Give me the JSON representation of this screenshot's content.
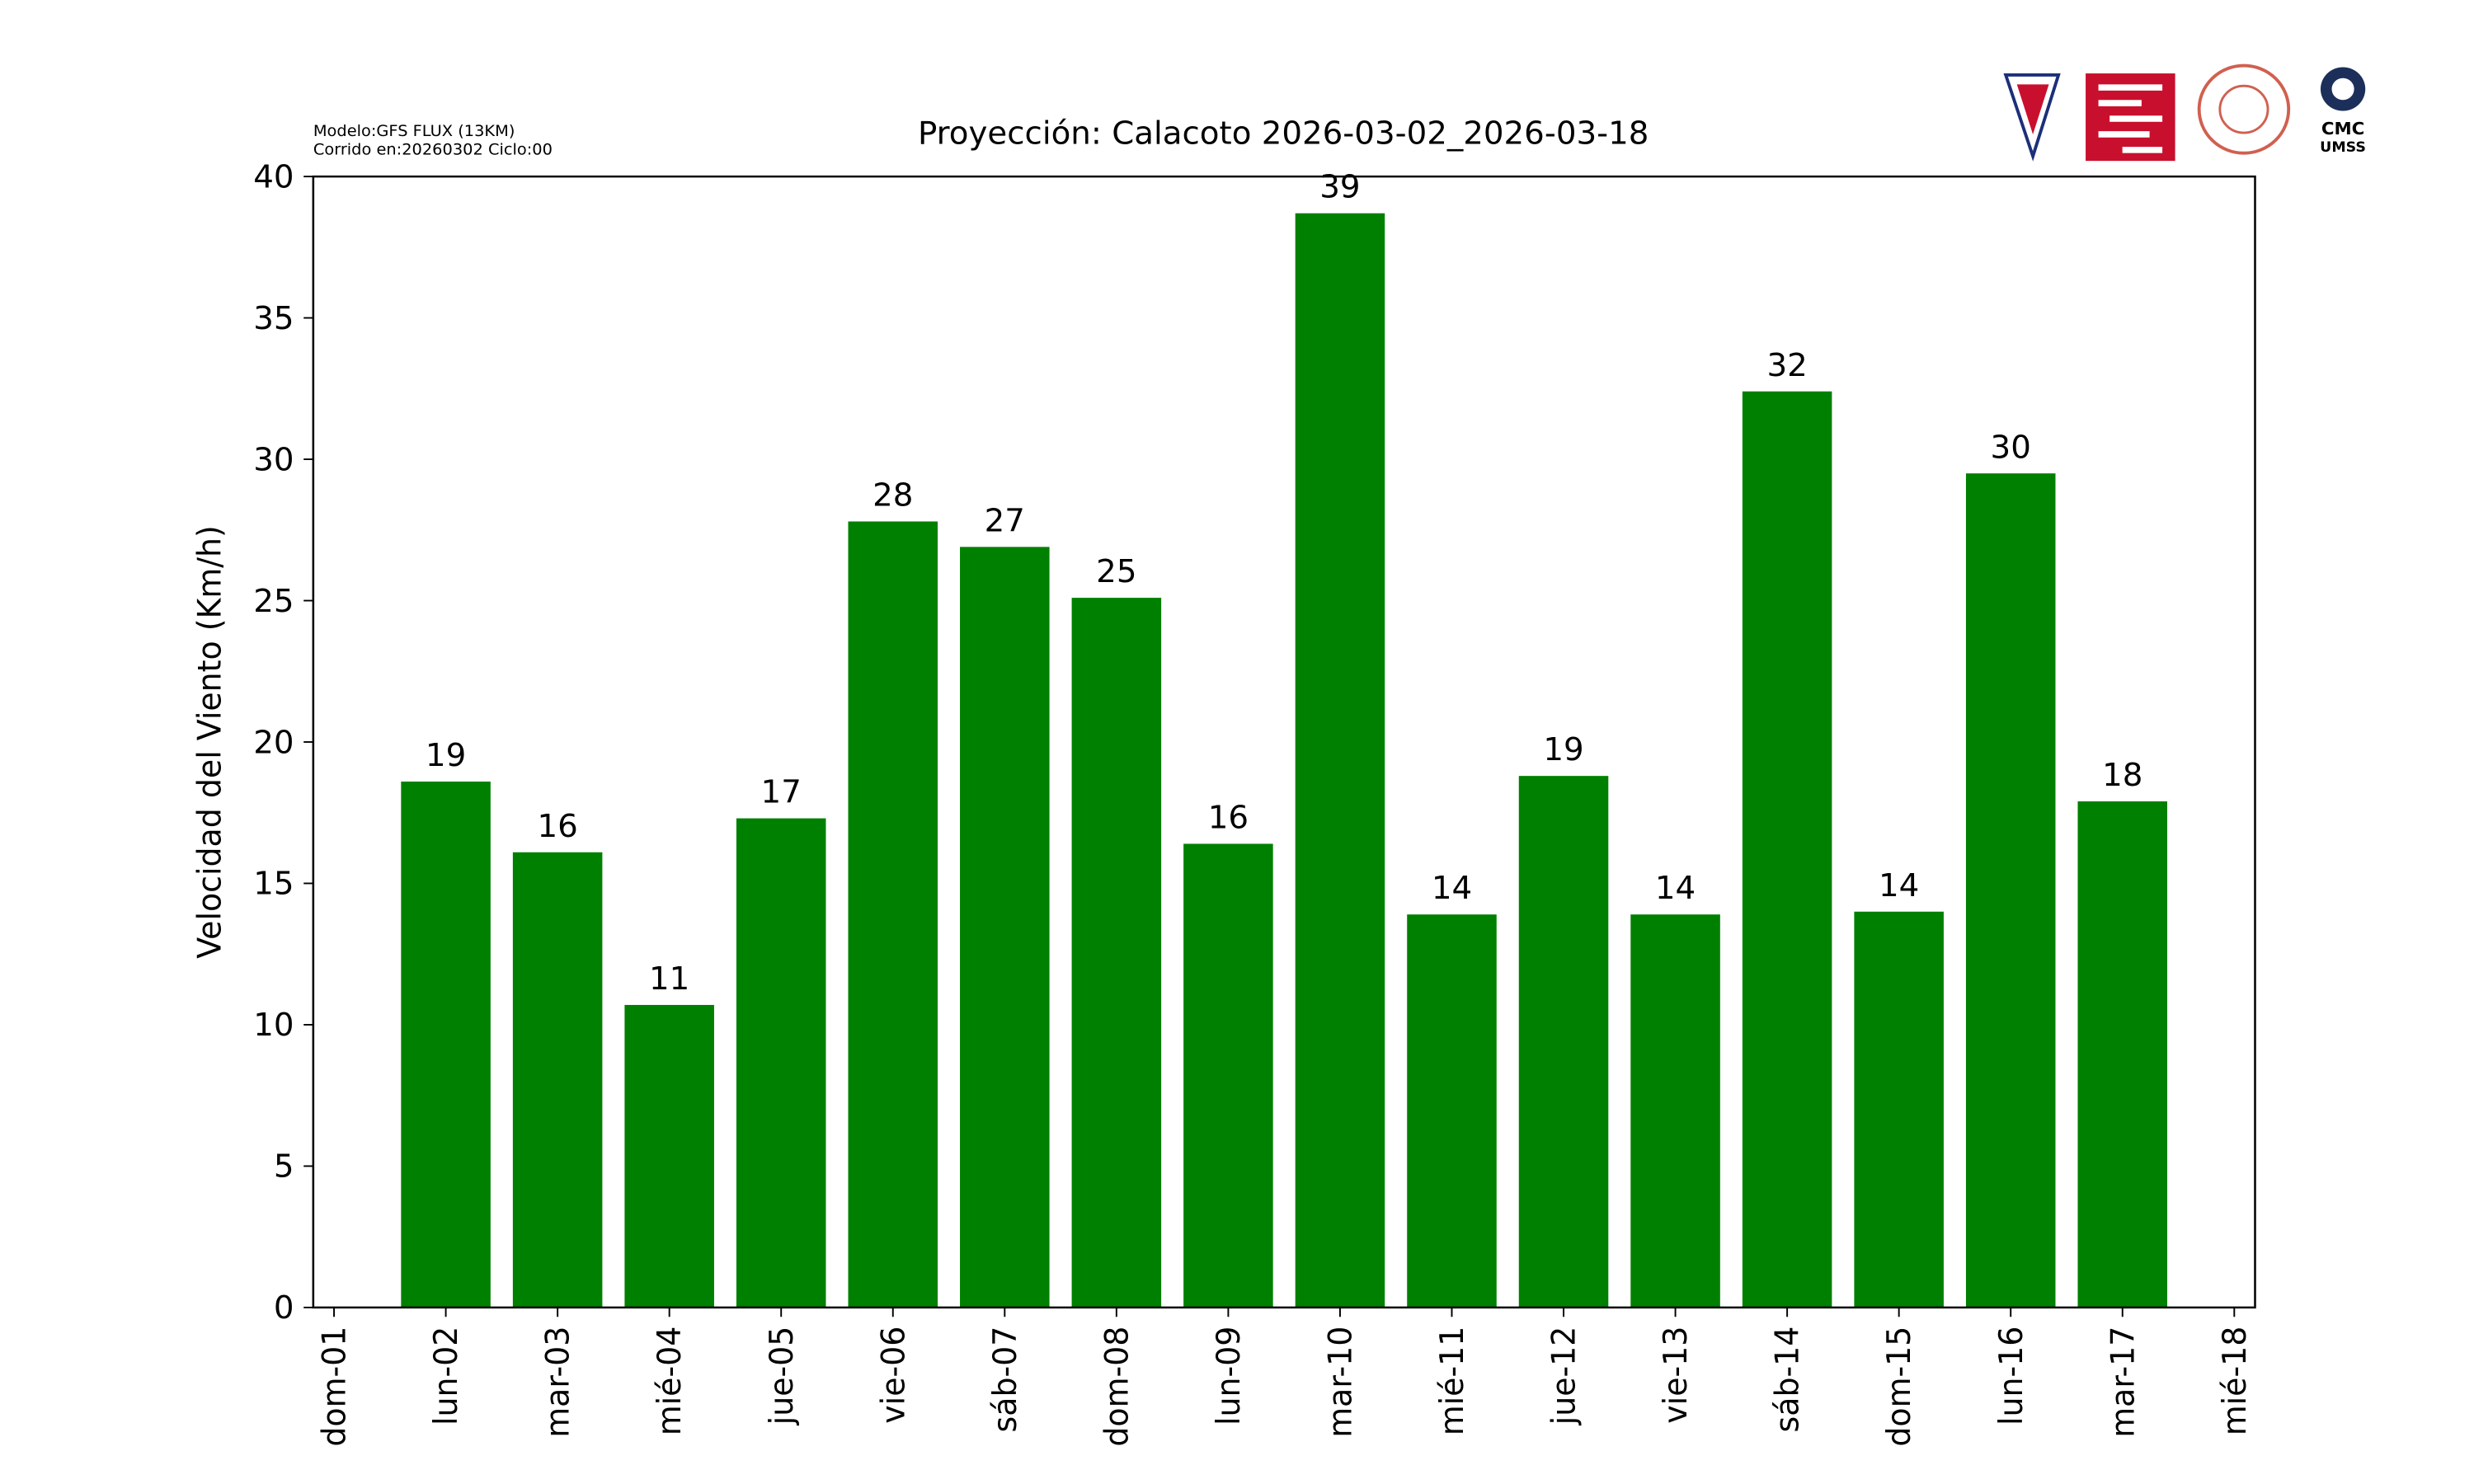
{
  "chart_data": {
    "type": "bar",
    "title": "Proyección: Calacoto  2026-03-02_2026-03-18",
    "annotations": [
      "Modelo:GFS FLUX (13KM)",
      "Corrido en:20260302 Ciclo:00"
    ],
    "logo_text": [
      "CMC",
      "UMSS"
    ],
    "y_label": "Velocidad del Viento (Km/h)",
    "categories": [
      "dom-01",
      "lun-02",
      "mar-03",
      "mié-04",
      "jue-05",
      "vie-06",
      "sáb-07",
      "dom-08",
      "lun-09",
      "mar-10",
      "mié-11",
      "jue-12",
      "vie-13",
      "sáb-14",
      "dom-15",
      "lun-16",
      "mar-17",
      "mié-18"
    ],
    "values": [
      null,
      18.6,
      16.1,
      10.7,
      17.3,
      27.8,
      26.9,
      25.1,
      16.4,
      38.7,
      13.9,
      18.8,
      13.9,
      32.4,
      14.0,
      29.5,
      17.9,
      null
    ],
    "value_labels": [
      null,
      "19",
      "16",
      "11",
      "17",
      "28",
      "27",
      "25",
      "16",
      "39",
      "14",
      "19",
      "14",
      "32",
      "14",
      "30",
      "18",
      null
    ],
    "color": "#008000",
    "ylim": [
      0,
      40
    ],
    "yticks": [
      0,
      5,
      10,
      15,
      20,
      25,
      30,
      35,
      40
    ],
    "grid": false
  }
}
